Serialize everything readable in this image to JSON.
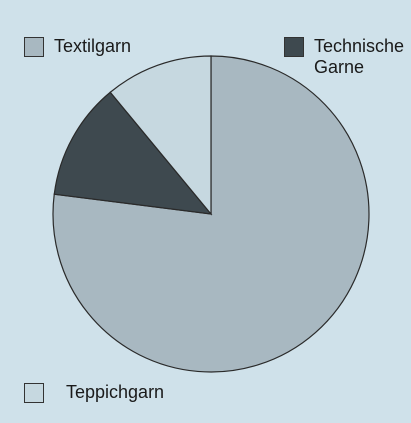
{
  "chart_data": {
    "type": "pie",
    "categories": [
      "Textilgarn",
      "Technische Garne",
      "Teppichgarn"
    ],
    "values": [
      77,
      12,
      11
    ],
    "colors": [
      "#a8b8c1",
      "#3e494f",
      "#c6d8e0"
    ]
  }
}
